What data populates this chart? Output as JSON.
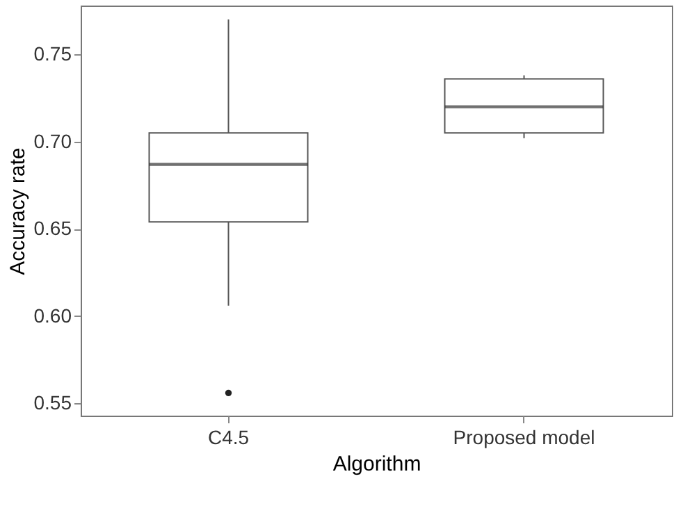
{
  "chart_data": {
    "type": "box",
    "xlabel": "Algorithm",
    "ylabel": "Accuracy rate",
    "categories": [
      "C4.5",
      "Proposed model"
    ],
    "boxes": [
      {
        "low": 0.606,
        "q1": 0.654,
        "median": 0.687,
        "q3": 0.705,
        "high": 0.77,
        "outliers": [
          0.556
        ]
      },
      {
        "low": 0.702,
        "q1": 0.705,
        "median": 0.72,
        "q3": 0.736,
        "high": 0.738
      }
    ],
    "ylim": [
      0.543,
      0.778
    ],
    "yticks": [
      0.55,
      {
        "value": 0.6,
        "label": "0.60"
      },
      0.65,
      {
        "value": 0.7,
        "label": "0.70"
      },
      0.75
    ],
    "grid": false
  }
}
